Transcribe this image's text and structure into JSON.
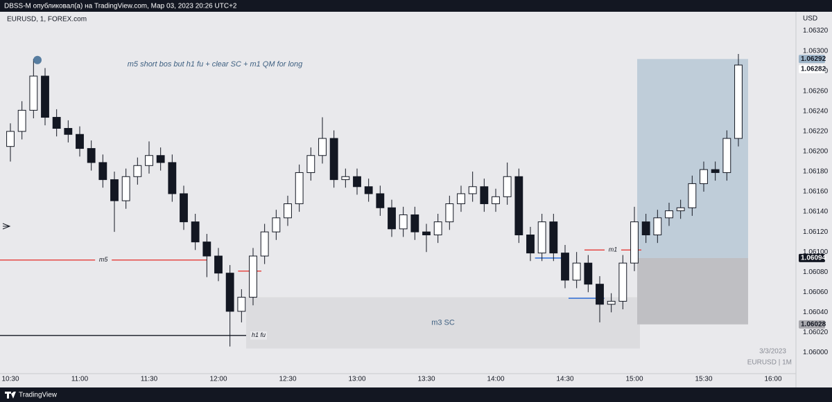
{
  "header": {
    "title": "DBSS-M опубликовал(а) на TradingView.com, Мар 03, 2023 20:26 UTC+2",
    "symbol": "EURUSD, 1, FOREX.com",
    "currency": "USD"
  },
  "footer": {
    "brand": "TradingView",
    "date": "3/3/2023",
    "symbol_interval": "EURUSD | 1M"
  },
  "chart_data": {
    "type": "candlestick",
    "annotation": "m5 short bos but h1 fu + clear SC + m1 QM for long",
    "up_color": "#ffffff",
    "down_color": "#131722",
    "series": {
      "x": [
        630,
        635,
        640,
        645,
        650,
        655,
        660,
        665,
        670,
        675,
        680,
        685,
        690,
        695,
        700,
        705,
        710,
        715,
        720,
        725,
        730,
        735,
        740,
        745,
        750,
        755,
        760,
        765,
        770,
        775,
        780,
        785,
        790,
        795,
        800,
        805,
        810,
        815,
        820,
        825,
        830,
        835,
        840,
        845,
        850,
        855,
        860,
        865,
        870,
        875,
        880,
        885,
        890,
        895,
        900,
        905,
        910,
        915,
        920,
        925,
        930,
        935,
        940,
        945
      ],
      "open": [
        1.06205,
        1.0622,
        1.06241,
        1.06275,
        1.06234,
        1.06223,
        1.06217,
        1.06203,
        1.06189,
        1.06172,
        1.06151,
        1.06175,
        1.06186,
        1.06196,
        1.06189,
        1.06158,
        1.0613,
        1.0611,
        1.06096,
        1.06079,
        1.06041,
        1.06055,
        1.06096,
        1.0612,
        1.06134,
        1.06148,
        1.06179,
        1.06196,
        1.06213,
        1.06172,
        1.06175,
        1.06165,
        1.06158,
        1.06144,
        1.06123,
        1.06137,
        1.0612,
        1.06117,
        1.0613,
        1.06148,
        1.06158,
        1.06165,
        1.06148,
        1.06155,
        1.06175,
        1.06117,
        1.06099,
        1.0613,
        1.06099,
        1.06072,
        1.06089,
        1.06068,
        1.06048,
        1.06051,
        1.06089,
        1.0613,
        1.06117,
        1.06134,
        1.06141,
        1.06144,
        1.06168,
        1.06182,
        1.06179,
        1.06213
      ],
      "high": [
        1.06228,
        1.0625,
        1.06292,
        1.06283,
        1.06242,
        1.06231,
        1.06225,
        1.06211,
        1.06197,
        1.0618,
        1.06183,
        1.06194,
        1.0621,
        1.06204,
        1.06197,
        1.06166,
        1.06138,
        1.06118,
        1.06104,
        1.06087,
        1.06063,
        1.06104,
        1.06128,
        1.06142,
        1.06156,
        1.06187,
        1.06204,
        1.06234,
        1.06221,
        1.06183,
        1.06183,
        1.06173,
        1.06166,
        1.06152,
        1.06145,
        1.06145,
        1.06128,
        1.06138,
        1.06156,
        1.06166,
        1.0618,
        1.06173,
        1.06163,
        1.06189,
        1.06183,
        1.06125,
        1.06138,
        1.06138,
        1.06107,
        1.061,
        1.06097,
        1.06076,
        1.06059,
        1.06097,
        1.06145,
        1.06138,
        1.06142,
        1.06149,
        1.06152,
        1.06176,
        1.0619,
        1.0619,
        1.06221,
        1.06297
      ],
      "low": [
        1.0619,
        1.06212,
        1.06233,
        1.06226,
        1.06215,
        1.06209,
        1.06195,
        1.06181,
        1.06164,
        1.0612,
        1.06143,
        1.06167,
        1.06178,
        1.06181,
        1.0615,
        1.06122,
        1.06102,
        1.06075,
        1.06071,
        1.06006,
        1.0603,
        1.06047,
        1.06088,
        1.06112,
        1.06126,
        1.0614,
        1.06171,
        1.06188,
        1.06164,
        1.06164,
        1.06157,
        1.0615,
        1.06136,
        1.06115,
        1.06115,
        1.06112,
        1.061,
        1.06109,
        1.06122,
        1.0614,
        1.0615,
        1.0614,
        1.0614,
        1.06147,
        1.06109,
        1.06091,
        1.06091,
        1.06091,
        1.06064,
        1.06064,
        1.0606,
        1.0603,
        1.0604,
        1.06043,
        1.06081,
        1.06109,
        1.06109,
        1.06126,
        1.06133,
        1.06136,
        1.0616,
        1.06171,
        1.06171,
        1.06205
      ],
      "close": [
        1.0622,
        1.06241,
        1.06275,
        1.06234,
        1.06223,
        1.06217,
        1.06203,
        1.06189,
        1.06172,
        1.06151,
        1.06175,
        1.06186,
        1.06196,
        1.06189,
        1.06158,
        1.0613,
        1.0611,
        1.06096,
        1.06079,
        1.06041,
        1.06055,
        1.06096,
        1.0612,
        1.06134,
        1.06148,
        1.06179,
        1.06196,
        1.06213,
        1.06172,
        1.06175,
        1.06165,
        1.06158,
        1.06144,
        1.06123,
        1.06137,
        1.0612,
        1.06117,
        1.0613,
        1.06148,
        1.06158,
        1.06165,
        1.06148,
        1.06155,
        1.06175,
        1.06117,
        1.06099,
        1.0613,
        1.06099,
        1.06072,
        1.06089,
        1.06068,
        1.06048,
        1.06051,
        1.06089,
        1.0613,
        1.06117,
        1.06134,
        1.06141,
        1.06144,
        1.06168,
        1.06182,
        1.06179,
        1.06213,
        1.06286
      ]
    },
    "marker": {
      "x": 641.7,
      "y": 1.06291,
      "color": "#3d6a93"
    },
    "levels": [
      {
        "label": "m5",
        "price": 1.06092,
        "x_start": 625.5,
        "x_end": 715,
        "color": "#e53935"
      },
      {
        "label": "h1 fu",
        "price": 1.06017,
        "x_start": 625.5,
        "x_end": 732,
        "color": "#131722"
      },
      {
        "price": 1.06081,
        "x_start": 728.5,
        "x_end": 738.6,
        "color": "#e53935"
      },
      {
        "label": "m1",
        "price": 1.06102,
        "x_start": 878.4,
        "x_end": 903,
        "color": "#e53935"
      },
      {
        "price": 1.06094,
        "x_start": 857,
        "x_end": 870,
        "color": "#1e63d6"
      },
      {
        "price": 1.06054,
        "x_start": 871.5,
        "x_end": 887,
        "color": "#1e63d6"
      }
    ],
    "zone": {
      "label": "m3 SC",
      "x_start": 732,
      "x_end": 902.4,
      "top": 1.06055,
      "bottom": 1.06004,
      "color": "#dcdcdf"
    },
    "position": {
      "x_start": 901.2,
      "x_end": 949.2,
      "target": 1.06292,
      "entry": 1.06094,
      "stop": 1.06028,
      "profit_color": "#bfcdd9",
      "loss_color": "#bfbfc3"
    },
    "last_price": 1.06282,
    "xlim": [
      625.5,
      969.9
    ],
    "xticks": [
      {
        "value": 630,
        "label": "10:30"
      },
      {
        "value": 660,
        "label": "11:00"
      },
      {
        "value": 690,
        "label": "11:30"
      },
      {
        "value": 720,
        "label": "12:00"
      },
      {
        "value": 750,
        "label": "12:30"
      },
      {
        "value": 780,
        "label": "13:00"
      },
      {
        "value": 810,
        "label": "13:30"
      },
      {
        "value": 840,
        "label": "14:00"
      },
      {
        "value": 870,
        "label": "14:30"
      },
      {
        "value": 900,
        "label": "15:00"
      },
      {
        "value": 930,
        "label": "15:30"
      },
      {
        "value": 960,
        "label": "16:00"
      }
    ],
    "ylim": [
      1.05979,
      1.06339
    ],
    "yticks": [
      {
        "value": 1.0632,
        "label": "1.06320"
      },
      {
        "value": 1.063,
        "label": "1.06300"
      },
      {
        "value": 1.0628,
        "label": "1.06280"
      },
      {
        "value": 1.0626,
        "label": "1.06260"
      },
      {
        "value": 1.0624,
        "label": "1.06240"
      },
      {
        "value": 1.0622,
        "label": "1.06220"
      },
      {
        "value": 1.062,
        "label": "1.06200"
      },
      {
        "value": 1.0618,
        "label": "1.06180"
      },
      {
        "value": 1.0616,
        "label": "1.06160"
      },
      {
        "value": 1.0614,
        "label": "1.06140"
      },
      {
        "value": 1.0612,
        "label": "1.06120"
      },
      {
        "value": 1.061,
        "label": "1.06100"
      },
      {
        "value": 1.0608,
        "label": "1.06080"
      },
      {
        "value": 1.0606,
        "label": "1.06060"
      },
      {
        "value": 1.0604,
        "label": "1.06040"
      },
      {
        "value": 1.0602,
        "label": "1.06020"
      },
      {
        "value": 1.06,
        "label": "1.06000"
      }
    ]
  }
}
